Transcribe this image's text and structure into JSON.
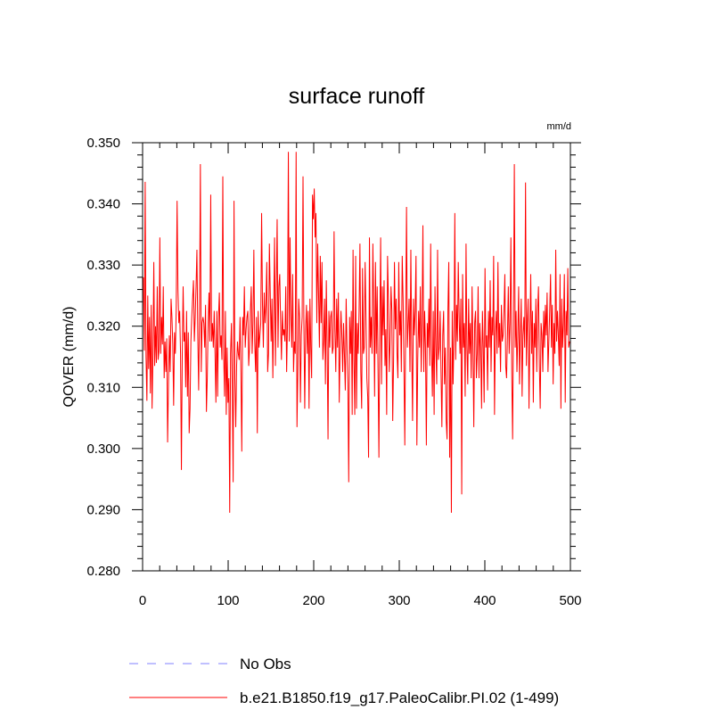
{
  "chart_data": {
    "type": "line",
    "title": "surface runoff",
    "units_label": "mm/d",
    "ylabel": "QOVER  (mm/d)",
    "xlabel": "",
    "xlim": [
      0,
      500
    ],
    "ylim": [
      0.28,
      0.35
    ],
    "x_ticks": [
      0,
      100,
      200,
      300,
      400,
      500
    ],
    "x_tick_labels": [
      "0",
      "100",
      "200",
      "300",
      "400",
      "500"
    ],
    "y_ticks": [
      0.28,
      0.29,
      0.3,
      0.31,
      0.32,
      0.33,
      0.34,
      0.35
    ],
    "y_tick_labels": [
      "0.280",
      "0.290",
      "0.300",
      "0.310",
      "0.320",
      "0.330",
      "0.340",
      "0.350"
    ],
    "grid": false,
    "legend_position": "bottom",
    "colors": {
      "series": "#ff0000",
      "obs": "#8080ff"
    },
    "legend": [
      {
        "label": "No Obs",
        "style": "dashed",
        "color": "#8080ff"
      },
      {
        "label": "b.e21.B1850.f19_g17.PaleoCalibr.PI.02 (1-499)",
        "style": "solid",
        "color": "#ff0000"
      }
    ],
    "series": [
      {
        "name": "b.e21.B1850.f19_g17.PaleoCalibr.PI.02 (1-499)",
        "x_start": 1,
        "x_end": 499,
        "values": [
          0.328,
          0.316,
          0.3436,
          0.315,
          0.3078,
          0.325,
          0.313,
          0.3215,
          0.309,
          0.3235,
          0.3065,
          0.3155,
          0.3305,
          0.3135,
          0.32,
          0.314,
          0.3265,
          0.3145,
          0.316,
          0.3345,
          0.3155,
          0.3215,
          0.317,
          0.3265,
          0.3115,
          0.3175,
          0.3125,
          0.318,
          0.301,
          0.3105,
          0.3185,
          0.3125,
          0.3245,
          0.3215,
          0.317,
          0.307,
          0.319,
          0.3155,
          0.323,
          0.3405,
          0.326,
          0.3205,
          0.3225,
          0.3155,
          0.2965,
          0.3155,
          0.3265,
          0.3175,
          0.319,
          0.31,
          0.3225,
          0.3085,
          0.319,
          0.3025,
          0.3065,
          0.3175,
          0.3215,
          0.3245,
          0.3275,
          0.3175,
          0.3215,
          0.3265,
          0.3325,
          0.3185,
          0.3095,
          0.3225,
          0.3465,
          0.3125,
          0.3205,
          0.3215,
          0.3205,
          0.3165,
          0.3235,
          0.306,
          0.3115,
          0.3205,
          0.3255,
          0.3175,
          0.3415,
          0.3175,
          0.3205,
          0.3165,
          0.3225,
          0.3155,
          0.3075,
          0.3225,
          0.3085,
          0.3215,
          0.3255,
          0.3165,
          0.3185,
          0.3145,
          0.3445,
          0.3155,
          0.3085,
          0.3225,
          0.3055,
          0.3165,
          0.3075,
          0.3115,
          0.2895,
          0.3155,
          0.3205,
          0.3095,
          0.2945,
          0.3405,
          0.3115,
          0.3035,
          0.3135,
          0.3175,
          0.3155,
          0.3145,
          0.3215,
          0.3125,
          0.2995,
          0.3215,
          0.3185,
          0.3265,
          0.3165,
          0.3195,
          0.3215,
          0.3225,
          0.3135,
          0.3165,
          0.3225,
          0.3265,
          0.3155,
          0.3205,
          0.3325,
          0.3175,
          0.3125,
          0.3215,
          0.3025,
          0.3225,
          0.3165,
          0.3185,
          0.3205,
          0.3385,
          0.3235,
          0.3165,
          0.3255,
          0.3205,
          0.3235,
          0.3305,
          0.3125,
          0.3155,
          0.3335,
          0.3255,
          0.3175,
          0.3245,
          0.3115,
          0.3225,
          0.3345,
          0.3135,
          0.3255,
          0.3375,
          0.3165,
          0.3265,
          0.3285,
          0.3205,
          0.3145,
          0.3225,
          0.3185,
          0.3195,
          0.3175,
          0.3265,
          0.3125,
          0.3205,
          0.3485,
          0.3175,
          0.3345,
          0.3215,
          0.3165,
          0.3285,
          0.3125,
          0.3175,
          0.3155,
          0.3485,
          0.3035,
          0.3125,
          0.3245,
          0.3215,
          0.3075,
          0.3185,
          0.3215,
          0.3445,
          0.3205,
          0.3065,
          0.3195,
          0.3235,
          0.3155,
          0.3225,
          0.3065,
          0.3245,
          0.3165,
          0.3115,
          0.3415,
          0.3375,
          0.3425,
          0.3345,
          0.3385,
          0.3205,
          0.3335,
          0.3255,
          0.3165,
          0.3315,
          0.3205,
          0.3305,
          0.3145,
          0.3175,
          0.3245,
          0.3105,
          0.3275,
          0.3165,
          0.3015,
          0.3225,
          0.3165,
          0.3215,
          0.3225,
          0.3155,
          0.3165,
          0.3355,
          0.3195,
          0.3125,
          0.3245,
          0.3165,
          0.3255,
          0.3075,
          0.3165,
          0.3225,
          0.3185,
          0.3125,
          0.3205,
          0.3155,
          0.3095,
          0.3245,
          0.3165,
          0.3105,
          0.2945,
          0.3215,
          0.3155,
          0.3225,
          0.3055,
          0.3325,
          0.3145,
          0.3055,
          0.3315,
          0.3065,
          0.3205,
          0.3155,
          0.3225,
          0.3335,
          0.3125,
          0.3065,
          0.3295,
          0.3155,
          0.3165,
          0.3305,
          0.3215,
          0.3115,
          0.3085,
          0.2985,
          0.3345,
          0.3165,
          0.3215,
          0.3155,
          0.3335,
          0.3225,
          0.3085,
          0.3305,
          0.3155,
          0.3265,
          0.3125,
          0.2985,
          0.3195,
          0.3345,
          0.3105,
          0.3265,
          0.3185,
          0.3275,
          0.3135,
          0.3195,
          0.3055,
          0.3315,
          0.3245,
          0.3125,
          0.3175,
          0.3265,
          0.3225,
          0.3045,
          0.3145,
          0.3305,
          0.3195,
          0.3245,
          0.3155,
          0.3115,
          0.3305,
          0.3185,
          0.3225,
          0.3125,
          0.3315,
          0.3245,
          0.3135,
          0.3005,
          0.3205,
          0.3395,
          0.3165,
          0.3205,
          0.3245,
          0.3125,
          0.3325,
          0.3165,
          0.3045,
          0.3245,
          0.3185,
          0.3225,
          0.3315,
          0.3005,
          0.3145,
          0.3225,
          0.3165,
          0.3265,
          0.3125,
          0.3205,
          0.3365,
          0.3125,
          0.3225,
          0.3165,
          0.3005,
          0.3205,
          0.3165,
          0.3245,
          0.3135,
          0.3335,
          0.3165,
          0.3085,
          0.3225,
          0.3055,
          0.3265,
          0.3165,
          0.3105,
          0.3325,
          0.3145,
          0.3165,
          0.3225,
          0.3125,
          0.3035,
          0.3185,
          0.3225,
          0.3105,
          0.3165,
          0.3045,
          0.3015,
          0.3225,
          0.3305,
          0.2985,
          0.3165,
          0.2895,
          0.3225,
          0.3105,
          0.3185,
          0.3385,
          0.3145,
          0.3235,
          0.3175,
          0.3305,
          0.3215,
          0.3155,
          0.3245,
          0.2925,
          0.3285,
          0.3165,
          0.3205,
          0.3085,
          0.3335,
          0.3165,
          0.3105,
          0.3245,
          0.3155,
          0.3205,
          0.3115,
          0.3265,
          0.3165,
          0.3035,
          0.3205,
          0.3225,
          0.3115,
          0.3155,
          0.3265,
          0.3115,
          0.3205,
          0.3165,
          0.3065,
          0.3225,
          0.3165,
          0.3075,
          0.3295,
          0.3165,
          0.3185,
          0.3095,
          0.3225,
          0.3165,
          0.3275,
          0.3125,
          0.3215,
          0.3185,
          0.3315,
          0.3055,
          0.3185,
          0.3225,
          0.3155,
          0.3305,
          0.3165,
          0.3205,
          0.3125,
          0.3235,
          0.3175,
          0.3185,
          0.3225,
          0.3285,
          0.3135,
          0.3115,
          0.3185,
          0.3265,
          0.3155,
          0.3205,
          0.3345,
          0.3125,
          0.3015,
          0.3205,
          0.3465,
          0.3165,
          0.3225,
          0.3125,
          0.3185,
          0.3265,
          0.3105,
          0.3185,
          0.3245,
          0.3085,
          0.3185,
          0.3215,
          0.3165,
          0.3435,
          0.3135,
          0.3205,
          0.3245,
          0.3065,
          0.3185,
          0.3285,
          0.3155,
          0.3225,
          0.3075,
          0.3205,
          0.3165,
          0.3245,
          0.3125,
          0.3225,
          0.3265,
          0.3135,
          0.3065,
          0.3205,
          0.3185,
          0.3125,
          0.3225,
          0.3165,
          0.3235,
          0.3185,
          0.3255,
          0.3125,
          0.3175,
          0.3225,
          0.3285,
          0.3165,
          0.3235,
          0.3105,
          0.3205,
          0.3155,
          0.3325,
          0.3175,
          0.3225,
          0.3185,
          0.3135,
          0.3285,
          0.3065,
          0.3245,
          0.3165,
          0.3205,
          0.3285,
          0.3075,
          0.3225,
          0.3185,
          0.3295,
          0.3165,
          0.3175
        ]
      }
    ]
  }
}
